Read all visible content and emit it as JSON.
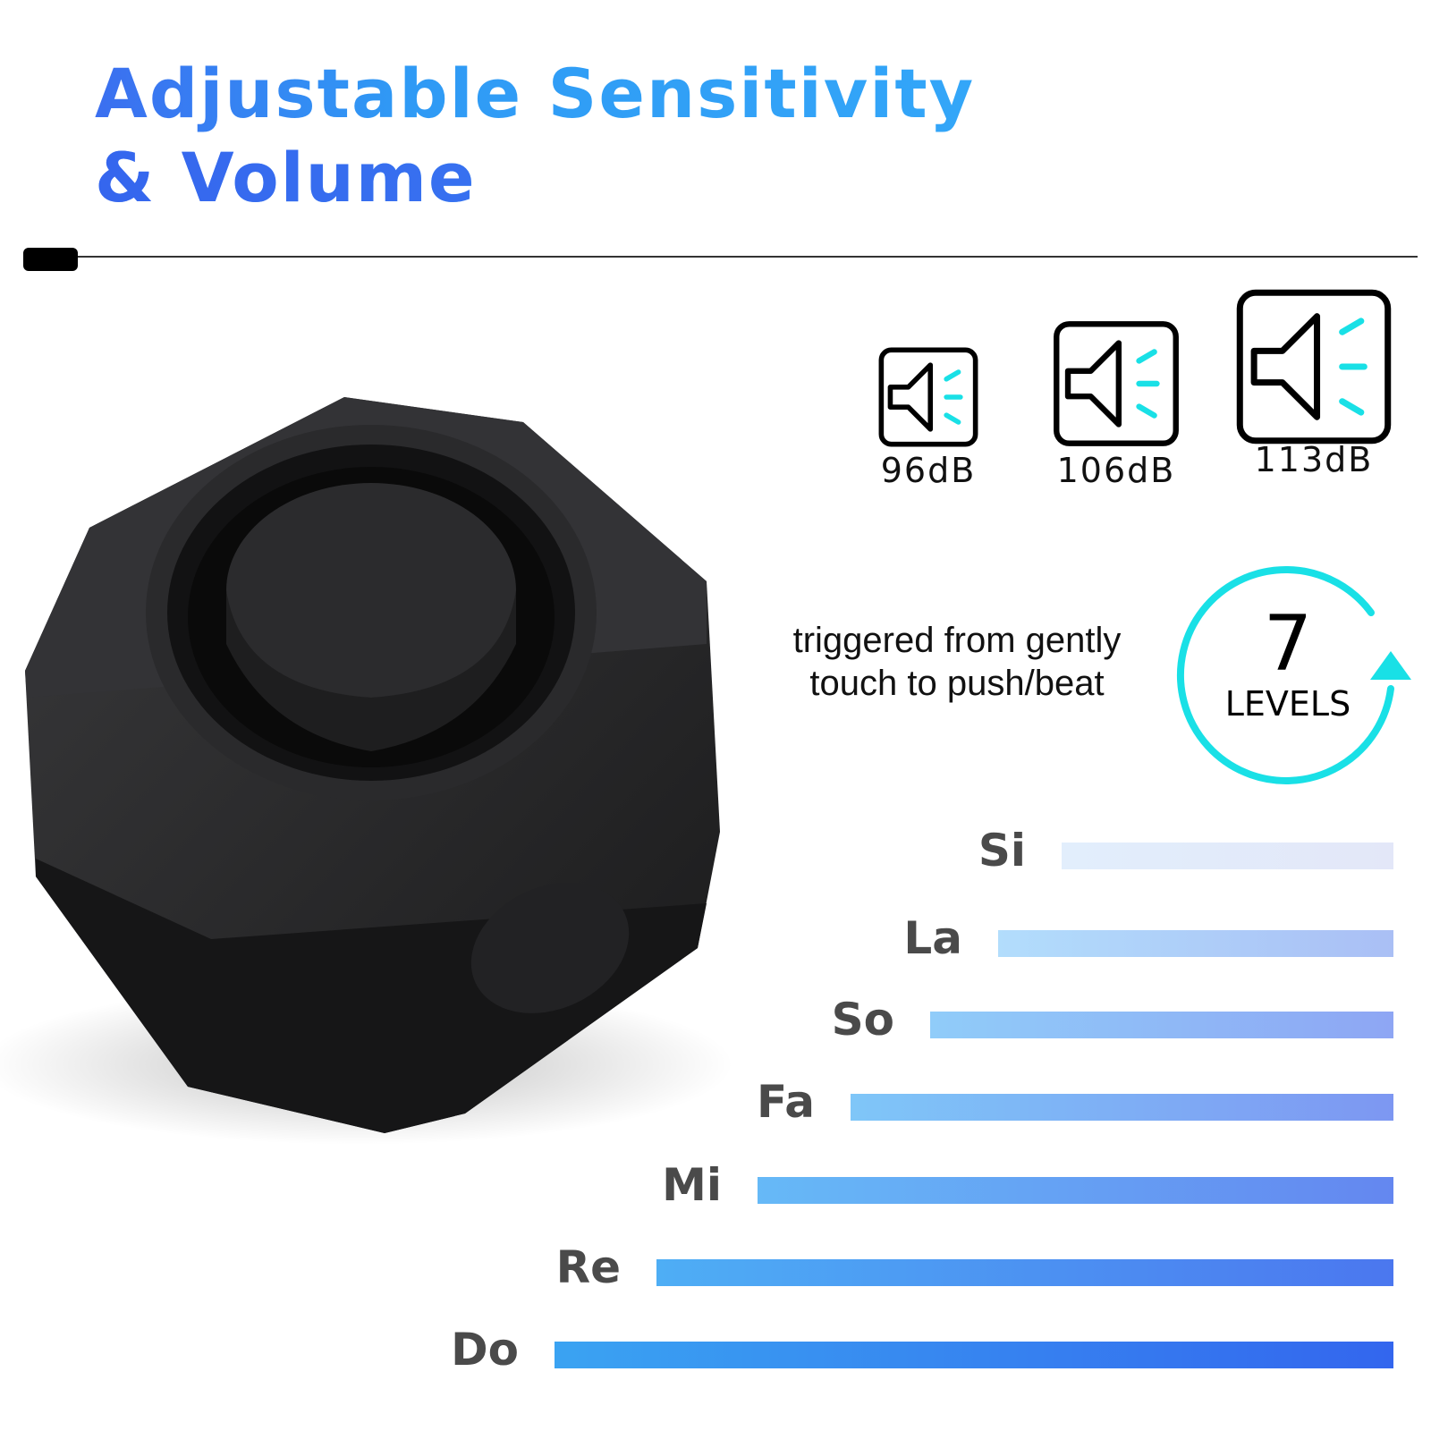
{
  "title": {
    "line1": "Adjustable Sensitivity",
    "line2": "& Volume"
  },
  "volume_levels": [
    {
      "label": "96dB",
      "icon": "speaker-volume-icon"
    },
    {
      "label": "106dB",
      "icon": "speaker-volume-icon"
    },
    {
      "label": "113dB",
      "icon": "speaker-volume-icon"
    }
  ],
  "sensitivity": {
    "line1": "triggered from gently",
    "line2": "touch to push/beat"
  },
  "levels_badge": {
    "number": "7",
    "label": "LEVELS",
    "icon": "circular-arrow-icon"
  },
  "tones": [
    {
      "label": "Si",
      "color_from": "#e2eefc",
      "color_to": "#e3e7f8"
    },
    {
      "label": "La",
      "color_from": "#b2ddfc",
      "color_to": "#aabff5"
    },
    {
      "label": "So",
      "color_from": "#90ccf9",
      "color_to": "#8ea6f4"
    },
    {
      "label": "Fa",
      "color_from": "#7fc6f8",
      "color_to": "#7d97f2"
    },
    {
      "label": "Mi",
      "color_from": "#66b9f7",
      "color_to": "#6487f0"
    },
    {
      "label": "Re",
      "color_from": "#4eaef5",
      "color_to": "#4b77ef"
    },
    {
      "label": "Do",
      "color_from": "#3aa3f2",
      "color_to": "#3366ee"
    }
  ],
  "colors": {
    "accent_cyan": "#19e0e6",
    "title_blue": "#2f9af5"
  }
}
